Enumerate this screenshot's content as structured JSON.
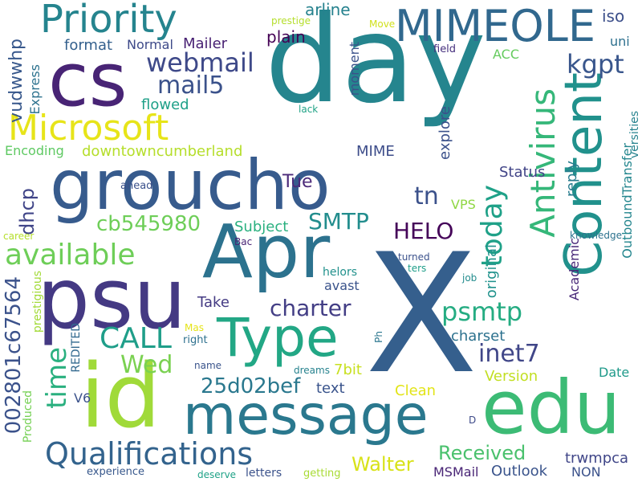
{
  "words": [
    {
      "text": "day",
      "color": "#25858e"
    },
    {
      "text": "X",
      "color": "#355f8d"
    },
    {
      "text": "groucho",
      "color": "#375b8d"
    },
    {
      "text": "Apr",
      "color": "#2c728e"
    },
    {
      "text": "psu",
      "color": "#443983"
    },
    {
      "text": "edu",
      "color": "#3cbb75"
    },
    {
      "text": "id",
      "color": "#a0da39"
    },
    {
      "text": "cs",
      "color": "#482475"
    },
    {
      "text": "message",
      "color": "#2a788e"
    },
    {
      "text": "Type",
      "color": "#22a785"
    },
    {
      "text": "Content",
      "color": "#21918c"
    },
    {
      "text": "Priority",
      "color": "#25848e"
    },
    {
      "text": "MIMEOLE",
      "color": "#31688e"
    },
    {
      "text": "Microsoft",
      "color": "#e7e419"
    },
    {
      "text": "Antivirus",
      "color": "#35b779"
    },
    {
      "text": "Qualifications",
      "color": "#33638d"
    },
    {
      "text": "webmail",
      "color": "#3e4989"
    },
    {
      "text": "kgpt",
      "color": "#39568c"
    },
    {
      "text": "mail5",
      "color": "#3b528b"
    },
    {
      "text": "available",
      "color": "#6ece58"
    },
    {
      "text": "today",
      "color": "#1fa188"
    },
    {
      "text": "CALL",
      "color": "#1f9e89"
    },
    {
      "text": "time",
      "color": "#2ab07f"
    },
    {
      "text": "charter",
      "color": "#433e85"
    },
    {
      "text": "inet7",
      "color": "#404688"
    },
    {
      "text": "psmtp",
      "color": "#25ac82"
    },
    {
      "text": "Received",
      "color": "#4ac16d"
    },
    {
      "text": "HELO",
      "color": "#450559"
    },
    {
      "text": "SMTP",
      "color": "#228d8d"
    },
    {
      "text": "Wed",
      "color": "#7ad151"
    },
    {
      "text": "25d02bef",
      "color": "#2a788e"
    },
    {
      "text": "cb545980",
      "color": "#6ece58"
    },
    {
      "text": "tn",
      "color": "#3b518b"
    },
    {
      "text": "002801c67564",
      "color": "#3b528b"
    },
    {
      "text": "Walter",
      "color": "#d8e219"
    },
    {
      "text": "dhcp",
      "color": "#404588"
    },
    {
      "text": "vudwwhp",
      "color": "#38588c"
    },
    {
      "text": "arline",
      "color": "#26828e"
    },
    {
      "text": "plain",
      "color": "#440154"
    },
    {
      "text": "format",
      "color": "#34608d"
    },
    {
      "text": "Normal",
      "color": "#3e4a89"
    },
    {
      "text": "Mailer",
      "color": "#482173"
    },
    {
      "text": "flowed",
      "color": "#1fa088"
    },
    {
      "text": "iso",
      "color": "#3c4f8a"
    },
    {
      "text": "uni",
      "color": "#2d708e"
    },
    {
      "text": "field",
      "color": "#46307e"
    },
    {
      "text": "ACC",
      "color": "#65cb5e"
    },
    {
      "text": "Move",
      "color": "#d0e11c"
    },
    {
      "text": "prestige",
      "color": "#b5de2b"
    },
    {
      "text": "moment",
      "color": "#3b528b"
    },
    {
      "text": "Express",
      "color": "#2c728e"
    },
    {
      "text": "downtowncumberland",
      "color": "#b5de2b"
    },
    {
      "text": "Encoding",
      "color": "#5ec962"
    },
    {
      "text": "MIME",
      "color": "#3d4d8a"
    },
    {
      "text": "explore",
      "color": "#3b518b"
    },
    {
      "text": "Status",
      "color": "#414487"
    },
    {
      "text": "reply",
      "color": "#287c8e"
    },
    {
      "text": "OutboundTransfer",
      "color": "#24868e"
    },
    {
      "text": "versities",
      "color": "#26828e"
    },
    {
      "text": "knowledge",
      "color": "#2c728e"
    },
    {
      "text": "lack",
      "color": "#20a386"
    },
    {
      "text": "ahead",
      "color": "#3b518b"
    },
    {
      "text": "Tue",
      "color": "#4c2a7a"
    },
    {
      "text": "Subject",
      "color": "#2ab07f"
    },
    {
      "text": "VPS",
      "color": "#8fd744"
    },
    {
      "text": "career",
      "color": "#b5de2b"
    },
    {
      "text": "Bac",
      "color": "#482475"
    },
    {
      "text": "Take",
      "color": "#443a83"
    },
    {
      "text": "helors",
      "color": "#21918c"
    },
    {
      "text": "turned",
      "color": "#3b518b"
    },
    {
      "text": "ters",
      "color": "#1f9e89"
    },
    {
      "text": "original",
      "color": "#20928c"
    },
    {
      "text": "Academic",
      "color": "#482878"
    },
    {
      "text": "job",
      "color": "#228c8d"
    },
    {
      "text": "avast",
      "color": "#3a538b"
    },
    {
      "text": "Produced",
      "color": "#75d054"
    },
    {
      "text": "prestigious",
      "color": "#a2da37"
    },
    {
      "text": "REDITED",
      "color": "#31688e"
    },
    {
      "text": "Mas",
      "color": "#e5e419"
    },
    {
      "text": "right",
      "color": "#2d708e"
    },
    {
      "text": "name",
      "color": "#3a548c"
    },
    {
      "text": "Ph",
      "color": "#2a768e"
    },
    {
      "text": "dreams",
      "color": "#26828e"
    },
    {
      "text": "7bit",
      "color": "#c8e020"
    },
    {
      "text": "charset",
      "color": "#2c718e"
    },
    {
      "text": "Version",
      "color": "#c2df23"
    },
    {
      "text": "Date",
      "color": "#1f9a8a"
    },
    {
      "text": "text",
      "color": "#3a548c"
    },
    {
      "text": "V6",
      "color": "#3b528b"
    },
    {
      "text": "Clean",
      "color": "#e2e418"
    },
    {
      "text": "D",
      "color": "#3e4a89"
    },
    {
      "text": "trwmpca",
      "color": "#404688"
    },
    {
      "text": "NON",
      "color": "#3b528b"
    },
    {
      "text": "MSMail",
      "color": "#482475"
    },
    {
      "text": "Outlook",
      "color": "#3a548c"
    },
    {
      "text": "letters",
      "color": "#3b528b"
    },
    {
      "text": "getting",
      "color": "#a8db34"
    },
    {
      "text": "deserve",
      "color": "#1fa287"
    },
    {
      "text": "experience",
      "color": "#38588c"
    }
  ]
}
